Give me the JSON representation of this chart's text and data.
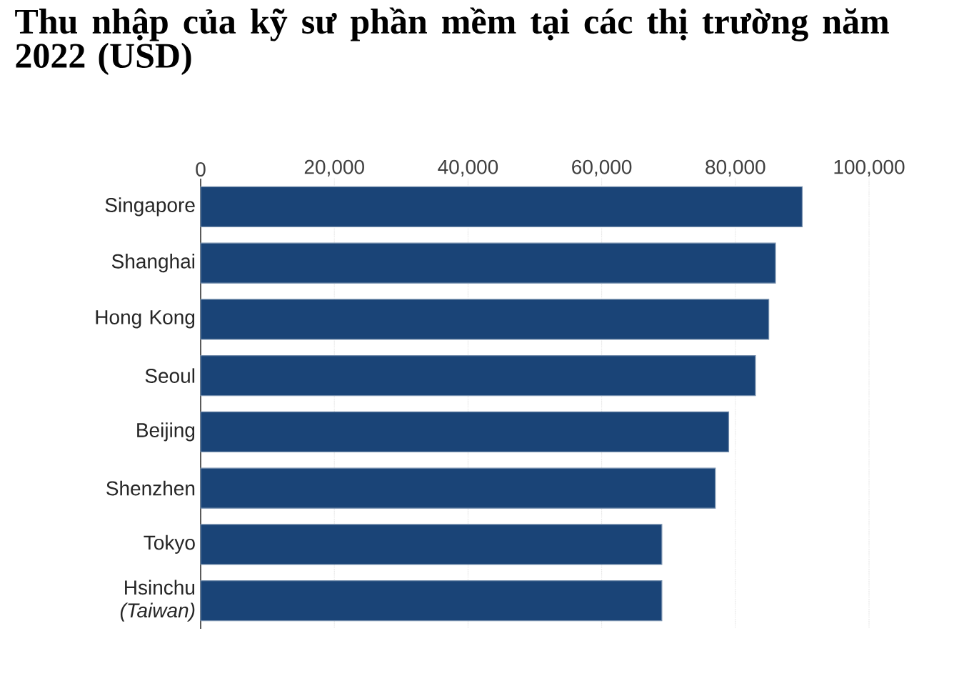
{
  "chart_data": {
    "type": "bar",
    "orientation": "horizontal",
    "title": "Thu nhập của kỹ sư phần mềm tại các thị trường năm 2022 (USD)",
    "categories": [
      "Singapore",
      "Shanghai",
      "Hong Kong",
      "Seoul",
      "Beijing",
      "Shenzhen",
      "Tokyo",
      "Hsinchu *(Taiwan)*"
    ],
    "values": [
      90000,
      86000,
      85000,
      83000,
      79000,
      77000,
      69000,
      69000
    ],
    "color": "#1a4477",
    "xlim": [
      0,
      100000
    ],
    "xticks": [
      0,
      {
        "value": 20000,
        "label": "20,000"
      },
      {
        "value": 40000,
        "label": "40,000"
      },
      {
        "value": 60000,
        "label": "60,000"
      },
      {
        "value": 80000,
        "label": "80,000"
      },
      {
        "value": 100000,
        "label": "100,000"
      }
    ],
    "grid": "x"
  }
}
